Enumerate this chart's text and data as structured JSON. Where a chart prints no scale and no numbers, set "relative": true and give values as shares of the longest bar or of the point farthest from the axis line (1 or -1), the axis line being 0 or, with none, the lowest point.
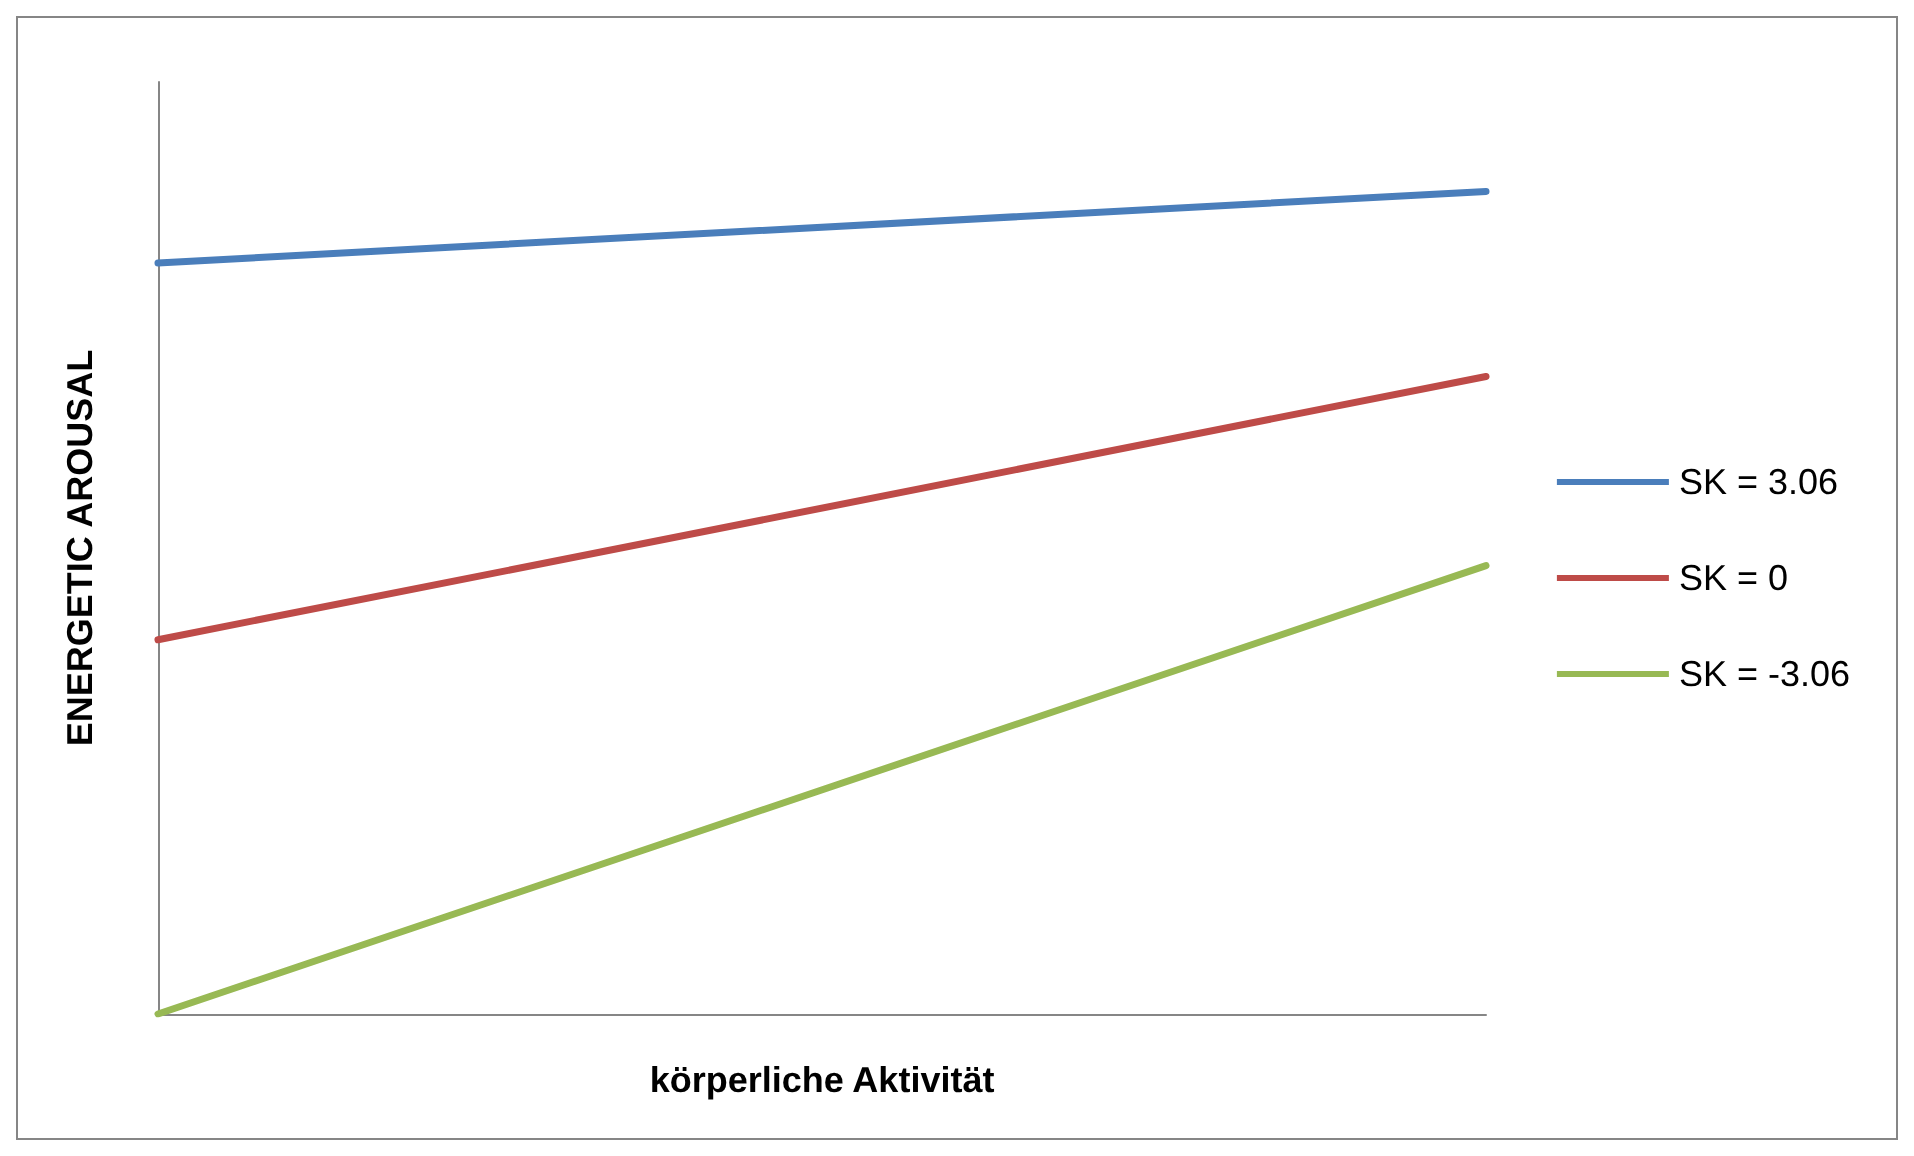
{
  "chart_data": {
    "type": "line",
    "relative": true,
    "xlabel": "körperliche Aktivität",
    "ylabel": "ENERGETIC AROUSAL",
    "categories": [
      null,
      null
    ],
    "legend": "right",
    "grid": false,
    "marker": "none",
    "line_style": "solid",
    "series": [
      {
        "name": "SK = 3.06",
        "color": "#4a7ebb",
        "values": [
          0.913,
          1
        ]
      },
      {
        "name": "SK = 0",
        "color": "#be4b48",
        "values": [
          0.455,
          0.775
        ]
      },
      {
        "name": "SK = -3.06",
        "color": "#98b954",
        "values": [
          0,
          0.545
        ]
      }
    ]
  }
}
